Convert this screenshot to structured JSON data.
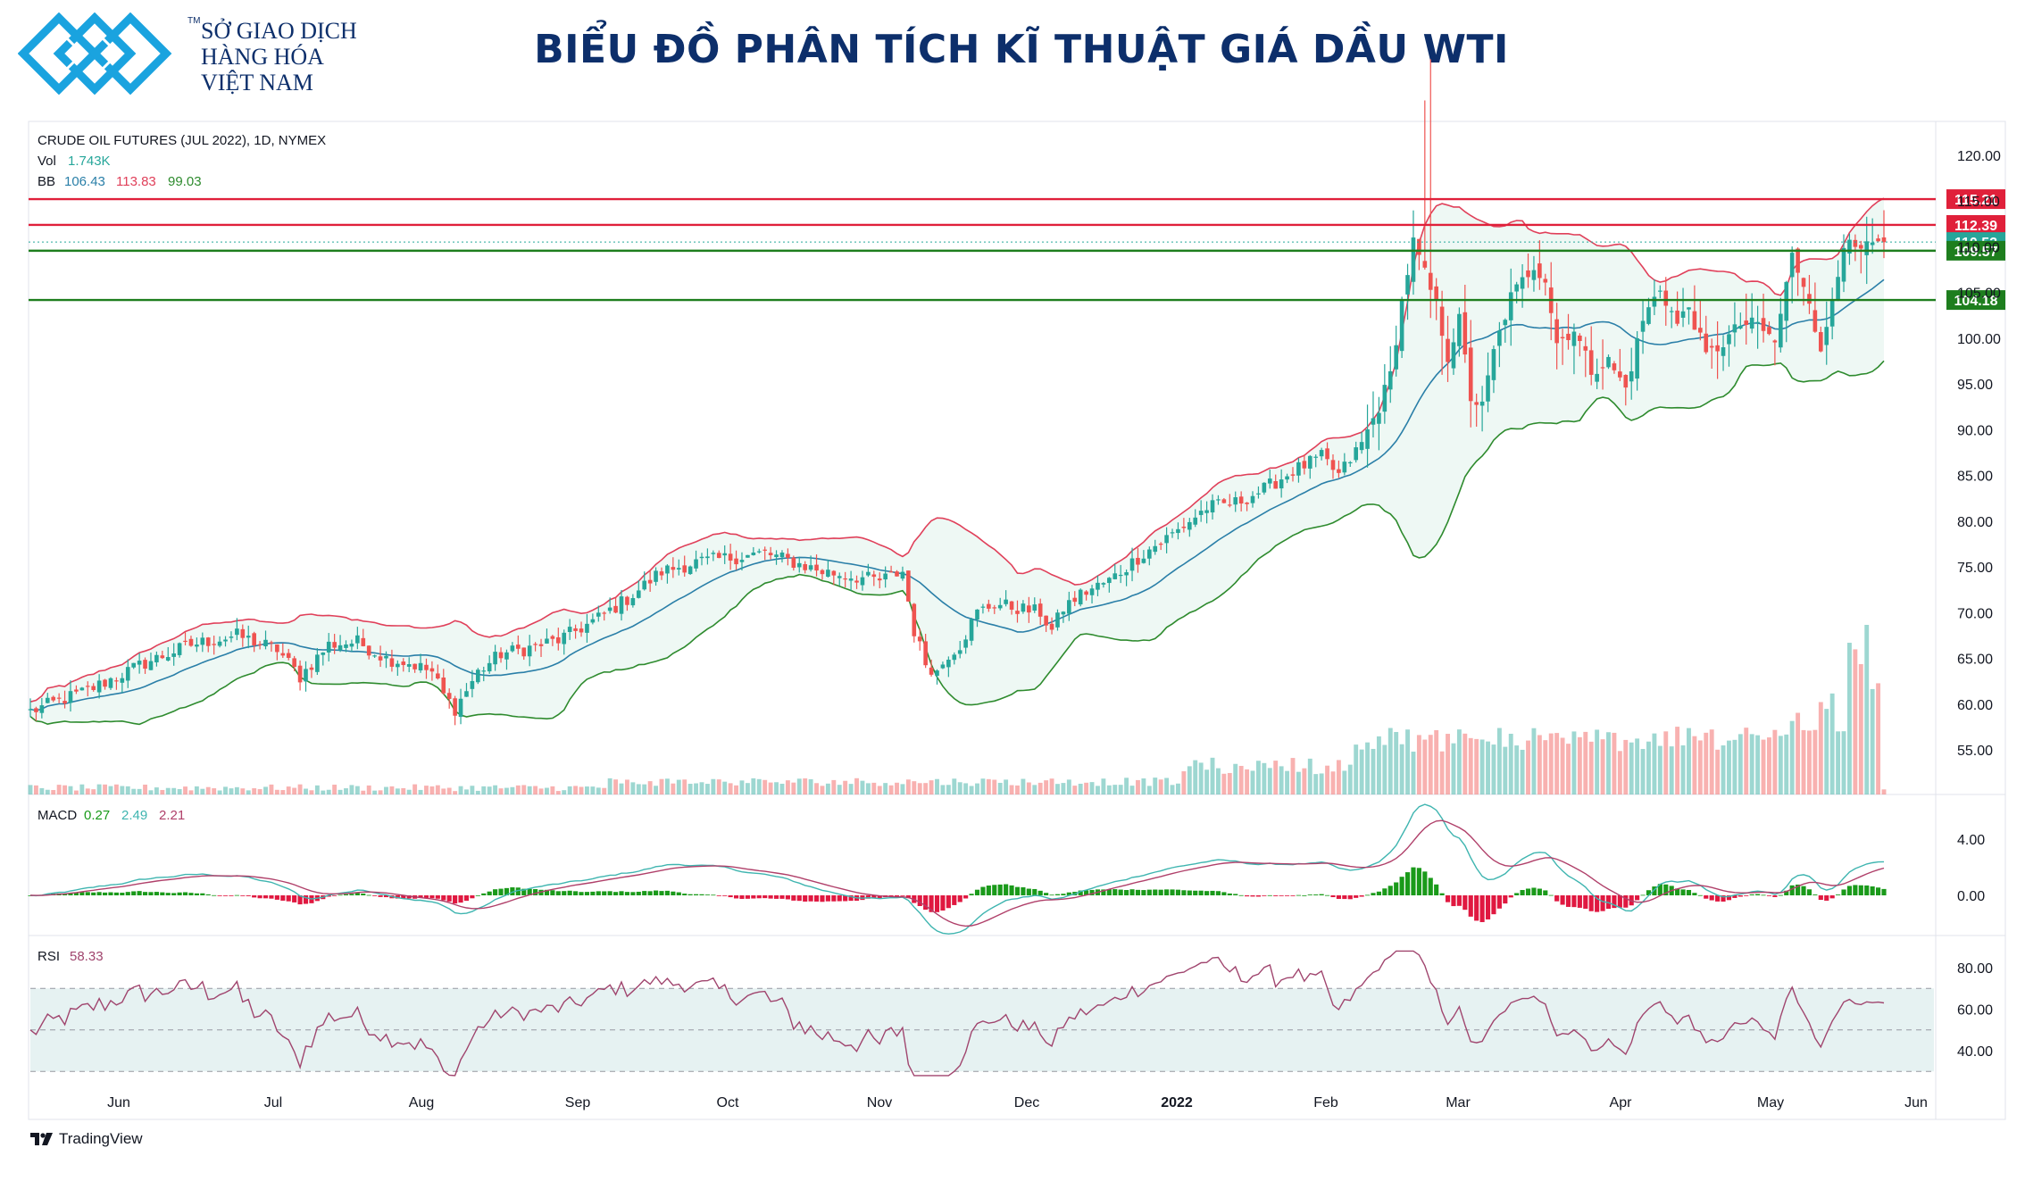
{
  "header": {
    "org_line1": "SỞ GIAO DỊCH",
    "org_line2": "HÀNG HÓA",
    "org_line3": "VIỆT NAM",
    "tm": "TM",
    "title": "BIỂU ĐỒ PHÂN TÍCH KĨ THUẬT GIÁ DẦU WTI",
    "brand_color": "#0d2f6b",
    "logo_color": "#1aa3df"
  },
  "footer": {
    "brand": "TradingView",
    "icon": "tradingview-logo"
  },
  "chart_data": {
    "type": "candlestick",
    "instrument": "CRUDE OIL FUTURES (JUL 2022), 1D, NYMEX",
    "legend": {
      "vol_label": "Vol",
      "vol_value": "1.743K",
      "bb_label": "BB",
      "bb_values": [
        "106.43",
        "113.83",
        "99.03"
      ],
      "macd_label": "MACD",
      "macd_values": [
        "0.27",
        "2.49",
        "2.21"
      ],
      "rsi_label": "RSI",
      "rsi_value": "58.33"
    },
    "colors": {
      "up": "#26a69a",
      "down": "#ef5350",
      "bb_upper": "#e0405a",
      "bb_lower": "#2e8b2e",
      "bb_basis": "#2a7fa8",
      "resistance": "#e0203a",
      "support": "#1e7e1e",
      "rsi_line": "#a0456e",
      "macd_line": "#3fb5b0",
      "signal_line": "#b0406a"
    },
    "price_axis": {
      "min": 50,
      "max": 120,
      "ticks": [
        "120.00",
        "115.00",
        "110.00",
        "105.00",
        "100.00",
        "95.00",
        "90.00",
        "85.00",
        "80.00",
        "75.00",
        "70.00",
        "65.00",
        "60.00",
        "55.00"
      ]
    },
    "macd_axis": {
      "ticks": [
        "4.00",
        "0.00"
      ]
    },
    "rsi_axis": {
      "ticks": [
        "80.00",
        "60.00",
        "40.00"
      ],
      "band": [
        30,
        70
      ],
      "mid": 50
    },
    "x_axis": [
      "Jun",
      "Jul",
      "Aug",
      "Sep",
      "Oct",
      "Nov",
      "Dec",
      "2022",
      "Feb",
      "Mar",
      "Apr",
      "May",
      "Jun"
    ],
    "levels": [
      {
        "value": 115.21,
        "label": "115.21",
        "kind": "resistance"
      },
      {
        "value": 112.39,
        "label": "112.39",
        "kind": "resistance"
      },
      {
        "value": 110.52,
        "label": "110.52",
        "kind": "last"
      },
      {
        "value": 109.57,
        "label": "109.57",
        "kind": "support"
      },
      {
        "value": 104.18,
        "label": "104.18",
        "kind": "support"
      }
    ],
    "close_anchors": [
      [
        0,
        59.2
      ],
      [
        10,
        61.5
      ],
      [
        20,
        64.5
      ],
      [
        28,
        66.5
      ],
      [
        36,
        67.5
      ],
      [
        43,
        66.0
      ],
      [
        47,
        63.0
      ],
      [
        52,
        66.5
      ],
      [
        57,
        66.8
      ],
      [
        62,
        65.0
      ],
      [
        66,
        64.5
      ],
      [
        70,
        63.5
      ],
      [
        72,
        61.0
      ],
      [
        74,
        59.5
      ],
      [
        76,
        61.5
      ],
      [
        78,
        63.5
      ],
      [
        82,
        65.5
      ],
      [
        86,
        66.0
      ],
      [
        92,
        67.0
      ],
      [
        98,
        69.0
      ],
      [
        104,
        71.5
      ],
      [
        110,
        74.5
      ],
      [
        116,
        75.5
      ],
      [
        122,
        76.0
      ],
      [
        128,
        76.5
      ],
      [
        133,
        75.5
      ],
      [
        138,
        74.5
      ],
      [
        143,
        74.0
      ],
      [
        148,
        73.5
      ],
      [
        152,
        74.5
      ],
      [
        154,
        68.0
      ],
      [
        156,
        64.5
      ],
      [
        158,
        63.5
      ],
      [
        160,
        65.5
      ],
      [
        162,
        66.5
      ],
      [
        165,
        70.0
      ],
      [
        168,
        71.0
      ],
      [
        172,
        70.5
      ],
      [
        176,
        70.0
      ],
      [
        178,
        68.0
      ],
      [
        180,
        70.5
      ],
      [
        183,
        72.0
      ],
      [
        188,
        73.5
      ],
      [
        194,
        76.5
      ],
      [
        200,
        79.0
      ],
      [
        205,
        81.5
      ],
      [
        210,
        82.0
      ],
      [
        215,
        83.5
      ],
      [
        220,
        85.5
      ],
      [
        225,
        87.0
      ],
      [
        228,
        85.0
      ],
      [
        232,
        88.5
      ],
      [
        235,
        92.5
      ],
      [
        237,
        96.0
      ],
      [
        239,
        104.0
      ],
      [
        241,
        110.5
      ],
      [
        243,
        107.0
      ],
      [
        245,
        103.5
      ],
      [
        247,
        98.0
      ],
      [
        249,
        102.0
      ],
      [
        251,
        93.5
      ],
      [
        253,
        92.5
      ],
      [
        255,
        98.5
      ],
      [
        258,
        104.5
      ],
      [
        262,
        108.0
      ],
      [
        264,
        106.5
      ],
      [
        266,
        99.5
      ],
      [
        269,
        101.0
      ],
      [
        272,
        96.5
      ],
      [
        275,
        97.5
      ],
      [
        278,
        94.5
      ],
      [
        281,
        102.0
      ],
      [
        284,
        105.5
      ],
      [
        287,
        101.5
      ],
      [
        289,
        103.5
      ],
      [
        292,
        98.0
      ],
      [
        295,
        99.5
      ],
      [
        298,
        101.5
      ],
      [
        301,
        101.5
      ],
      [
        304,
        99.5
      ],
      [
        307,
        109.0
      ],
      [
        310,
        104.5
      ],
      [
        312,
        98.0
      ],
      [
        314,
        104.5
      ],
      [
        316,
        110.5
      ],
      [
        318,
        109.5
      ],
      [
        321,
        110.0
      ],
      [
        323,
        110.5
      ]
    ]
  }
}
